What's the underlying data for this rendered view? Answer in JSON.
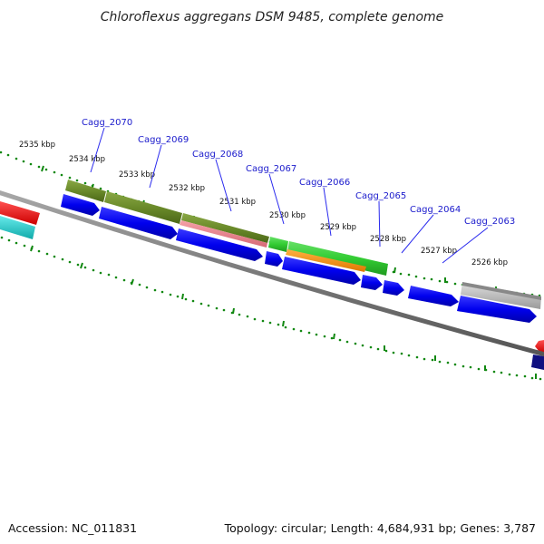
{
  "title": "Chloroflexus aggregans DSM 9485, complete genome",
  "footer": {
    "accession": "Accession: NC_011831",
    "summary": "Topology: circular; Length: 4,684,931 bp; Genes: 3,787"
  },
  "colors": {
    "backbone": "#7a7a7a",
    "tick": "#118811",
    "label": "#1a1acc",
    "cds": "#0a0aee",
    "olive": "#6a8a2a",
    "green": "#33cc33",
    "pink": "#e07a85",
    "orange": "#ff8c00",
    "gray": "#bdbdbd",
    "red": "#ee1111",
    "cyan": "#22cccc",
    "navy": "#101080"
  },
  "kbp_labels": [
    "2535 kbp",
    "2534 kbp",
    "2533 kbp",
    "2532 kbp",
    "2531 kbp",
    "2530 kbp",
    "2529 kbp",
    "2528 kbp",
    "2527 kbp",
    "2526 kbp"
  ],
  "gene_labels": [
    "Cagg_2070",
    "Cagg_2069",
    "Cagg_2068",
    "Cagg_2067",
    "Cagg_2066",
    "Cagg_2065",
    "Cagg_2064",
    "Cagg_2063"
  ]
}
